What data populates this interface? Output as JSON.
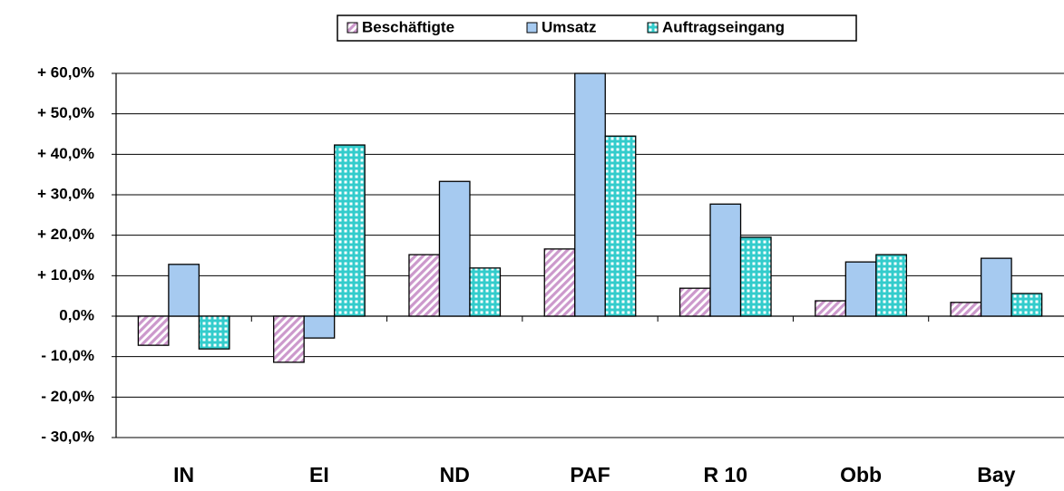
{
  "chart_data": {
    "type": "bar",
    "categories": [
      "IN",
      "EI",
      "ND",
      "PAF",
      "R 10",
      "Obb",
      "Bay"
    ],
    "series": [
      {
        "name": "Beschäftigte",
        "color": "#cc99cc",
        "pattern": "diagonal",
        "values": [
          -7.2,
          -11.4,
          15.2,
          16.6,
          6.9,
          3.8,
          3.4
        ]
      },
      {
        "name": "Umsatz",
        "color": "#a6caf0",
        "pattern": "solid",
        "values": [
          12.8,
          -5.4,
          33.3,
          60.0,
          27.7,
          13.4,
          14.3
        ]
      },
      {
        "name": "Auftragseingang",
        "color": "#33cccc",
        "pattern": "grid",
        "values": [
          -8.1,
          42.3,
          11.9,
          44.5,
          19.5,
          15.2,
          5.6
        ]
      }
    ],
    "ylim": [
      -30,
      60
    ],
    "yticks": [
      {
        "value": -30,
        "label": "- 30,0%"
      },
      {
        "value": -20,
        "label": "- 20,0%"
      },
      {
        "value": -10,
        "label": "- 10,0%"
      },
      {
        "value": 0,
        "label": "0,0%"
      },
      {
        "value": 10,
        "label": "+ 10,0%"
      },
      {
        "value": 20,
        "label": "+ 20,0%"
      },
      {
        "value": 30,
        "label": "+ 30,0%"
      },
      {
        "value": 40,
        "label": "+ 40,0%"
      },
      {
        "value": 50,
        "label": "+ 50,0%"
      },
      {
        "value": 60,
        "label": "+ 60,0%"
      }
    ],
    "grid": true,
    "legend": "top"
  }
}
